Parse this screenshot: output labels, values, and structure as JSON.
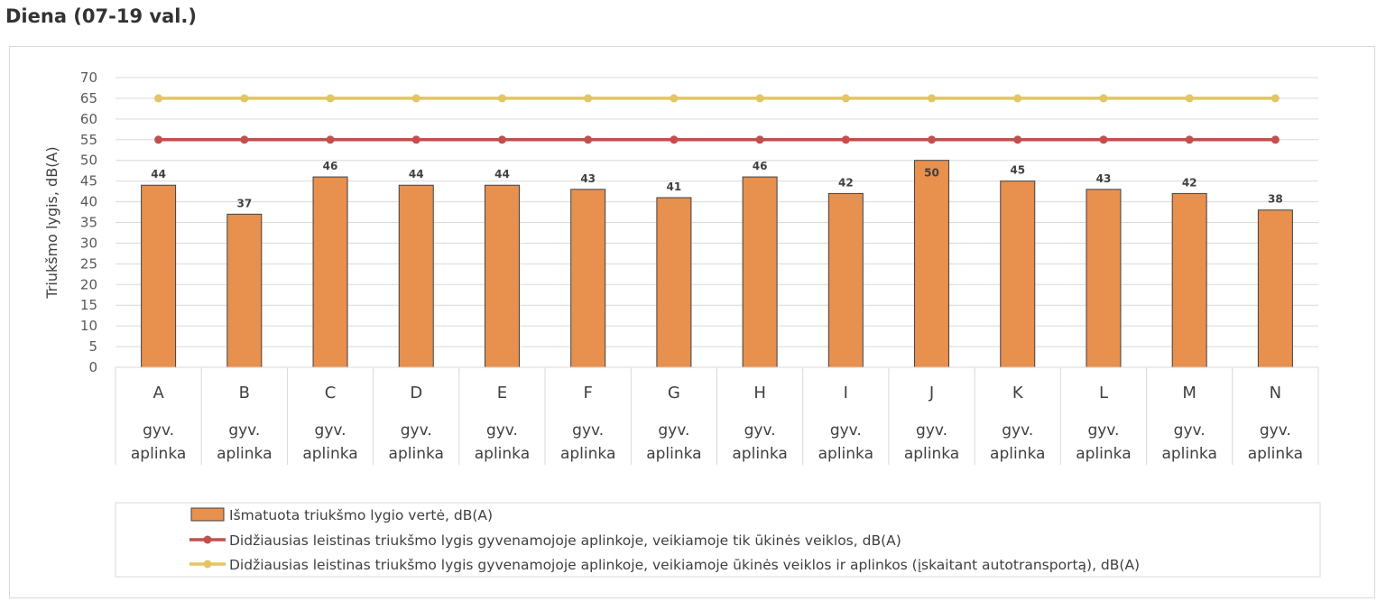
{
  "page": {
    "title": "Diena (07-19 val.)"
  },
  "chart_data": {
    "type": "bar",
    "ylabel": "Triukšmo lygis, dB(A)",
    "ylim": [
      0,
      70
    ],
    "yticks": [
      0,
      5,
      10,
      15,
      20,
      25,
      30,
      35,
      40,
      45,
      50,
      55,
      60,
      65,
      70
    ],
    "grid": true,
    "categories": [
      "A",
      "B",
      "C",
      "D",
      "E",
      "F",
      "G",
      "H",
      "I",
      "J",
      "K",
      "L",
      "M",
      "N"
    ],
    "sublabels": [
      [
        "gyv.",
        "aplinka"
      ],
      [
        "gyv.",
        "aplinka"
      ],
      [
        "gyv.",
        "aplinka"
      ],
      [
        "gyv.",
        "aplinka"
      ],
      [
        "gyv.",
        "aplinka"
      ],
      [
        "gyv.",
        "aplinka"
      ],
      [
        "gyv.",
        "aplinka"
      ],
      [
        "gyv.",
        "aplinka"
      ],
      [
        "gyv.",
        "aplinka"
      ],
      [
        "gyv.",
        "aplinka"
      ],
      [
        "gyv.",
        "aplinka"
      ],
      [
        "gyv.",
        "aplinka"
      ],
      [
        "gyv.",
        "aplinka"
      ],
      [
        "gyv.",
        "aplinka"
      ]
    ],
    "legend_position": "bottom",
    "series": [
      {
        "name": "Išmatuota triukšmo lygio vertė, dB(A)",
        "type": "bar",
        "color": "#E8904E",
        "values": [
          44,
          37,
          46,
          44,
          44,
          43,
          41,
          46,
          42,
          50,
          45,
          43,
          42,
          38
        ]
      },
      {
        "name": "Didžiausias leistinas triukšmo lygis gyvenamojoje aplinkoje, veikiamoje tik ūkinės veiklos,  dB(A)",
        "type": "line",
        "color": "#C0504D",
        "values": [
          55,
          55,
          55,
          55,
          55,
          55,
          55,
          55,
          55,
          55,
          55,
          55,
          55,
          55
        ]
      },
      {
        "name": "Didžiausias leistinas triukšmo lygis gyvenamojoje aplinkoje, veikiamoje ūkinės veiklos ir aplinkos (įskaitant autotransportą),  dB(A)",
        "type": "line",
        "color": "#E3C565",
        "values": [
          65,
          65,
          65,
          65,
          65,
          65,
          65,
          65,
          65,
          65,
          65,
          65,
          65,
          65
        ]
      }
    ]
  }
}
